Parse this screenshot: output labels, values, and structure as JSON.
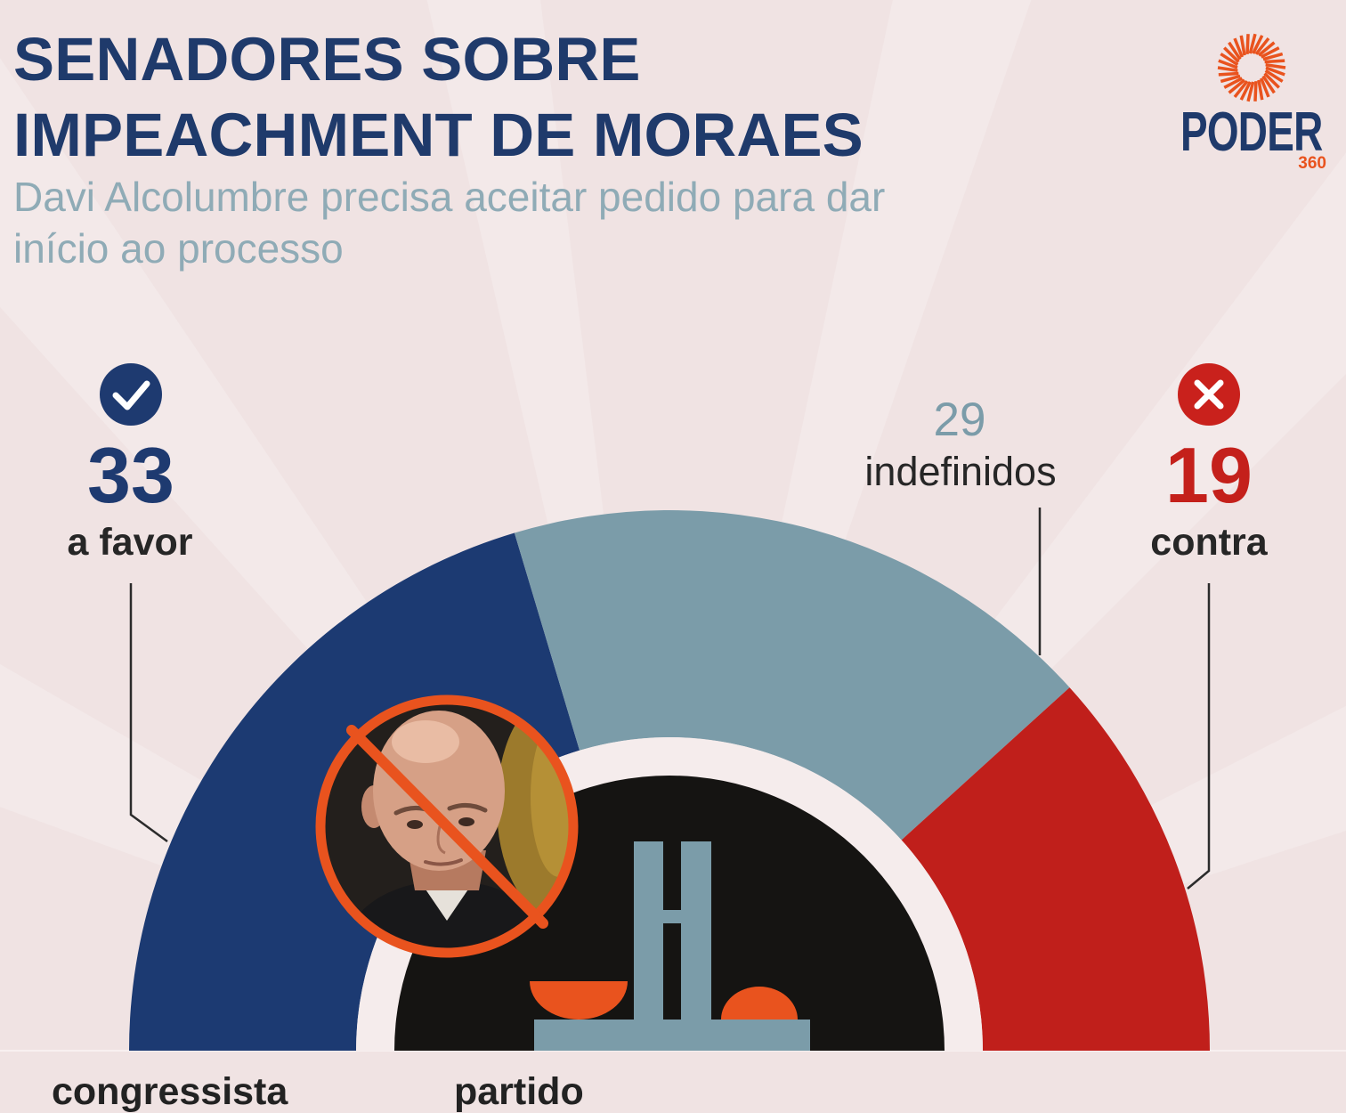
{
  "header": {
    "title": [
      "SENADORES SOBRE",
      "IMPEACHMENT DE MORAES"
    ],
    "subtitle": [
      "Davi Alcolumbre precisa aceitar pedido para dar",
      "início ao processo"
    ]
  },
  "logo": {
    "wordmark": "PODER",
    "suffix": "360",
    "icon": "sunburst-icon",
    "colors": {
      "wordmark": "#1f3a6b",
      "accent": "#e9531e"
    }
  },
  "chart_data": {
    "type": "pie",
    "variant": "semi-donut",
    "categories": [
      "a favor",
      "indefinidos",
      "contra"
    ],
    "values": [
      33,
      29,
      19
    ],
    "colors": [
      "#1c3a72",
      "#7b9ca9",
      "#c01f1b"
    ],
    "icons": [
      "check-circle-icon",
      "",
      "x-circle-icon"
    ]
  },
  "center_art": {
    "icons": [
      "crossed-out-portrait",
      "congress-building-icon"
    ],
    "colors": {
      "background": "#151412",
      "building": "#7b9ca9",
      "accent": "#e9531e"
    }
  },
  "table": {
    "columns": [
      "congressista",
      "partido"
    ]
  }
}
